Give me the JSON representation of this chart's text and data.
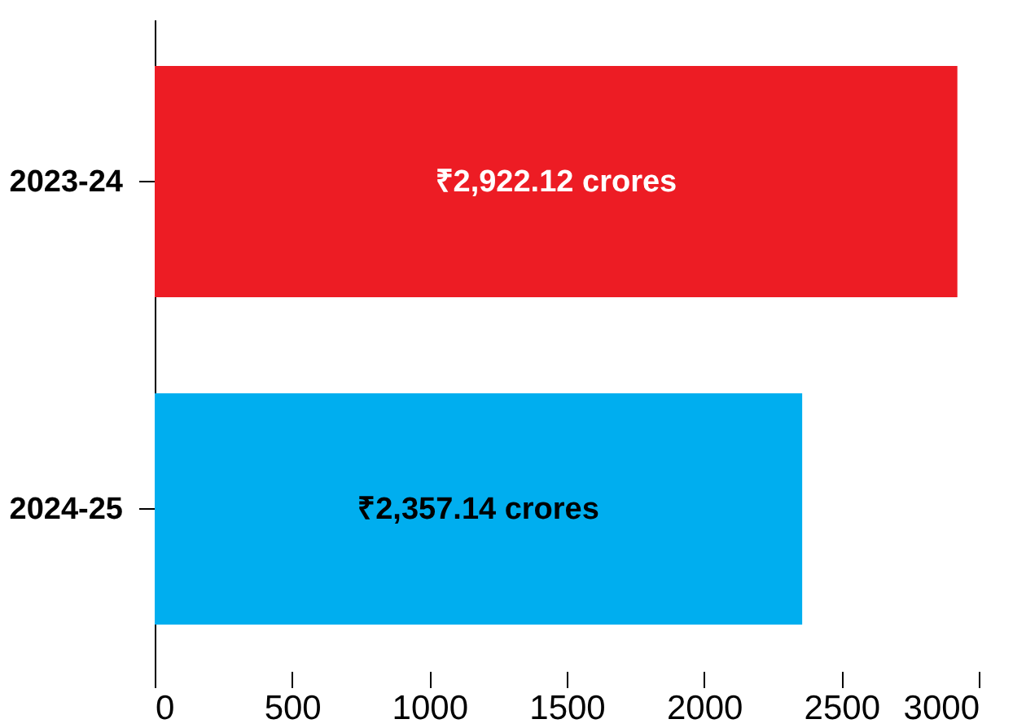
{
  "chart_data": {
    "type": "bar",
    "orientation": "horizontal",
    "categories": [
      "2023-24",
      "2024-25"
    ],
    "values": [
      2922.12,
      2357.14
    ],
    "colors": [
      "#ed1c24",
      "#00aeef"
    ],
    "value_labels": [
      "₹2,922.12 crores",
      "₹2,357.14 crores"
    ],
    "xlim": [
      0,
      3000
    ],
    "xticks": [
      0,
      500,
      1000,
      1500,
      2000,
      2500,
      3000
    ],
    "grid": false
  }
}
